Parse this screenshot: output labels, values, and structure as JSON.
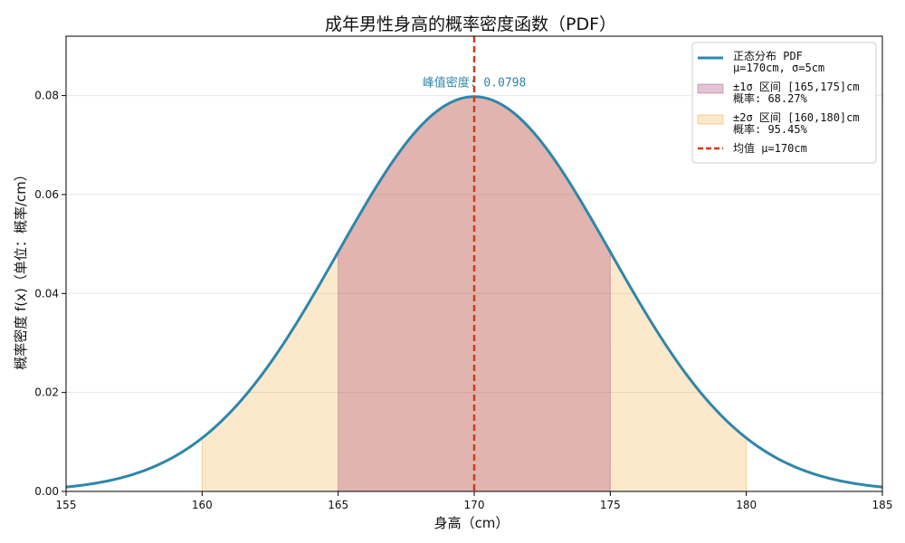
{
  "chart_data": {
    "type": "area",
    "title": "成年男性身高的概率密度函数（PDF）",
    "xlabel": "身高（cm）",
    "ylabel": "概率密度 f(x)（单位：概率/cm）",
    "xlim": [
      155,
      185
    ],
    "ylim": [
      0,
      0.092
    ],
    "x_ticks": [
      "155",
      "160",
      "165",
      "170",
      "175",
      "180",
      "185"
    ],
    "y_ticks": [
      "0.00",
      "0.02",
      "0.04",
      "0.06",
      "0.08"
    ],
    "grid": true,
    "legend_position": "top-right",
    "mean": 170,
    "sigma": 5,
    "peak_annotation": "峰值密度: 0.0798",
    "peak_value": 0.0798,
    "series": [
      {
        "kind": "curve",
        "legend": [
          "正态分布 PDF",
          "μ=170cm, σ=5cm"
        ],
        "color": "#2e86ab"
      },
      {
        "kind": "band",
        "range": [
          165,
          175
        ],
        "legend": [
          "±1σ 区间 [165,175]cm",
          "概率: 68.27%"
        ],
        "color": "#a23b72",
        "opacity": 0.3
      },
      {
        "kind": "band",
        "range": [
          160,
          180
        ],
        "legend": [
          "±2σ 区间 [160,180]cm",
          "概率: 95.45%"
        ],
        "color": "#f18f01",
        "opacity": 0.2
      },
      {
        "kind": "vline",
        "x": 170,
        "legend": [
          "均值 μ=170cm"
        ],
        "color": "#c73e1d"
      }
    ]
  }
}
